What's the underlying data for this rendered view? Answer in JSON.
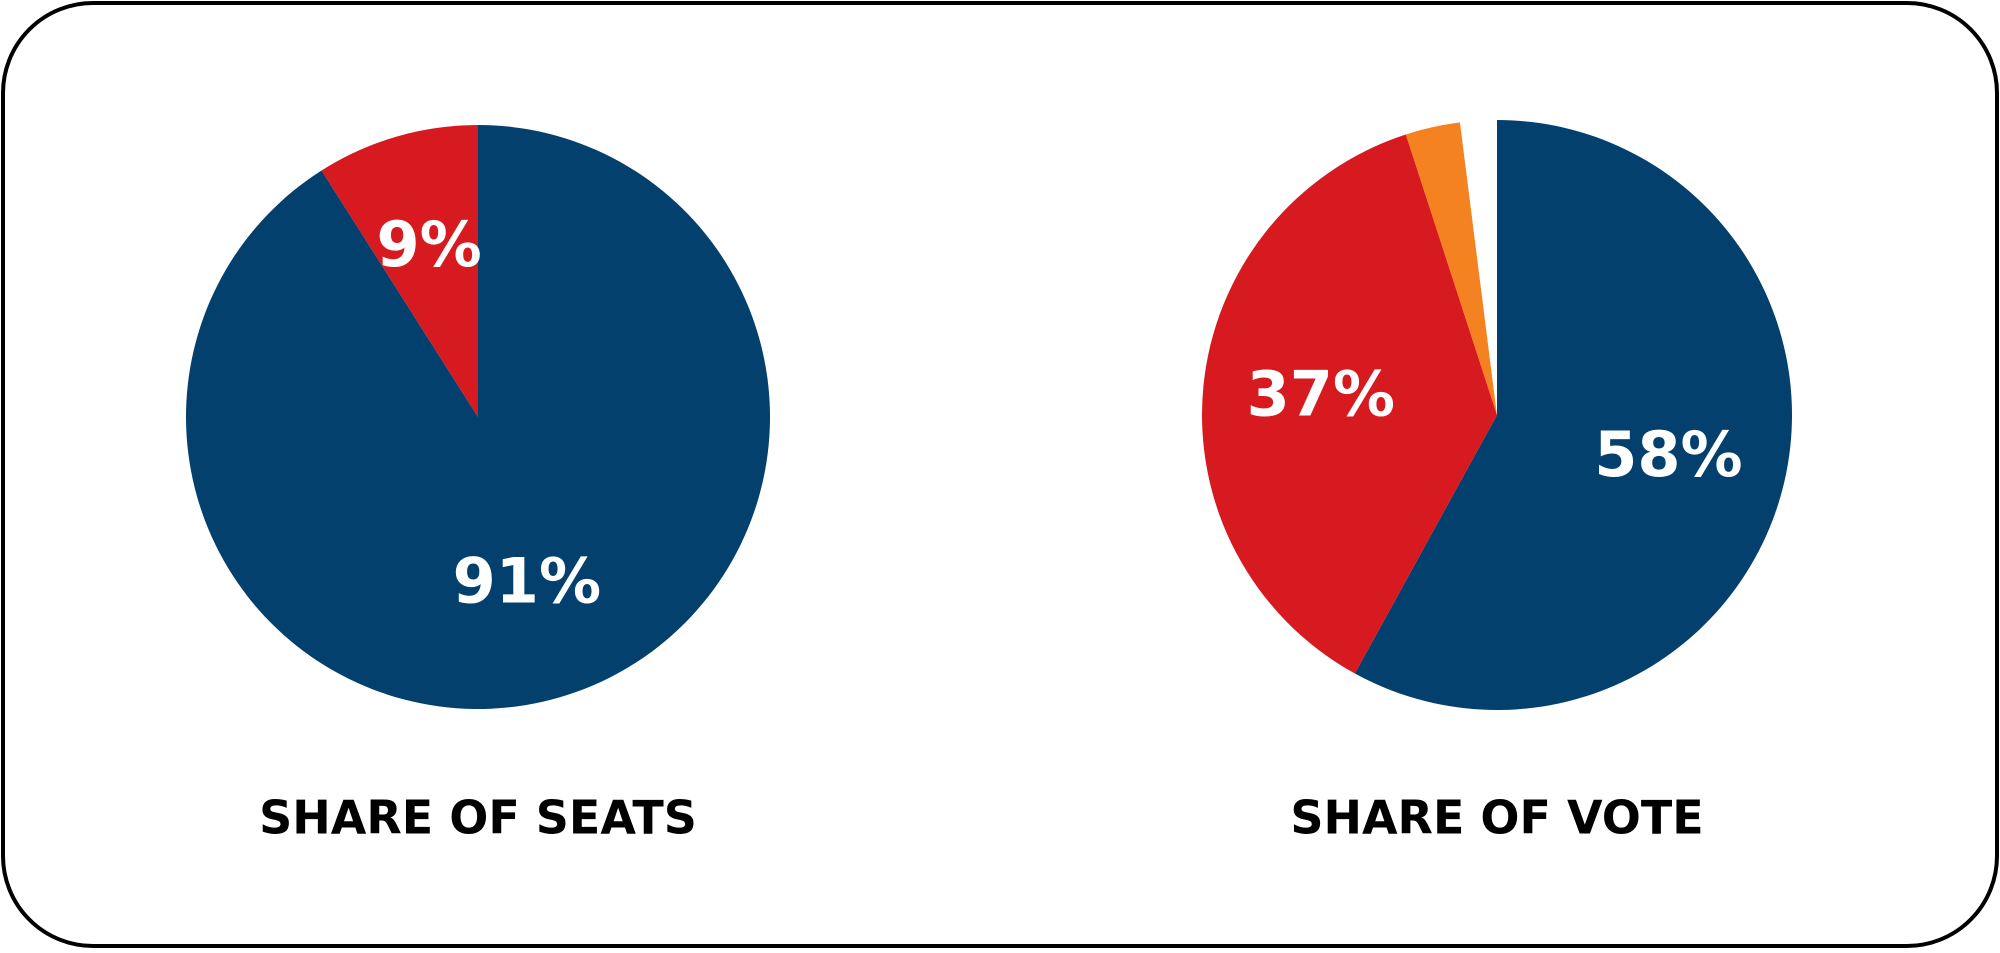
{
  "chart_data": [
    {
      "type": "pie",
      "title": "SHARE OF SEATS",
      "values": [
        91,
        9
      ],
      "value_labels": [
        "91%",
        "9%"
      ],
      "colors": [
        "#03406e",
        "#d71920"
      ]
    },
    {
      "type": "pie",
      "title": "SHARE OF VOTE",
      "values": [
        58,
        37,
        3,
        2
      ],
      "value_labels": [
        "58%",
        "37%",
        null,
        null
      ],
      "colors": [
        "#03406e",
        "#d71920",
        "#f58220",
        "#ffffff"
      ]
    }
  ]
}
